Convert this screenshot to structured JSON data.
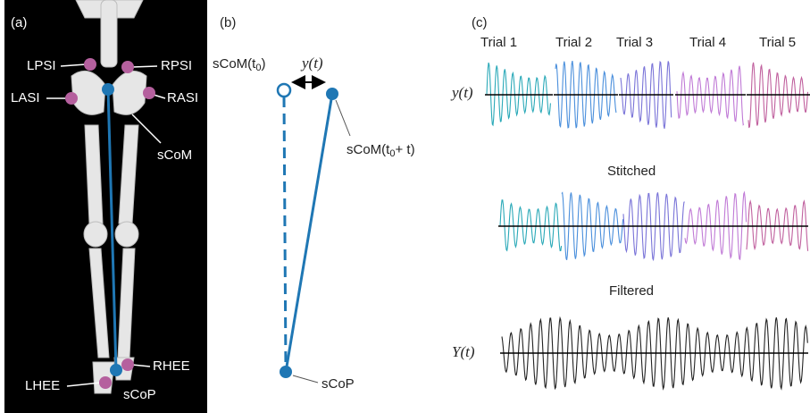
{
  "panel_a": {
    "label": "(a)",
    "markers": [
      "LPSI",
      "RPSI",
      "LASI",
      "RASI",
      "sCoM",
      "RHEE",
      "LHEE",
      "sCoP"
    ]
  },
  "panel_b": {
    "label": "(b)",
    "com_initial": {
      "text": "sCoM(t",
      "sub": "0",
      "tail": ")"
    },
    "displacement": "y(t)",
    "com_later": {
      "text": "sCoM(t",
      "sub": "0",
      "tail": "+ t)"
    },
    "cop": "sCoP"
  },
  "panel_c": {
    "label": "(c)",
    "trials": [
      "Trial 1",
      "Trial 2",
      "Trial 3",
      "Trial 4",
      "Trial 5"
    ],
    "signal_label": "y(t)",
    "stitched": "Stitched",
    "filtered": "Filtered",
    "filtered_label": "Y(t)"
  }
}
